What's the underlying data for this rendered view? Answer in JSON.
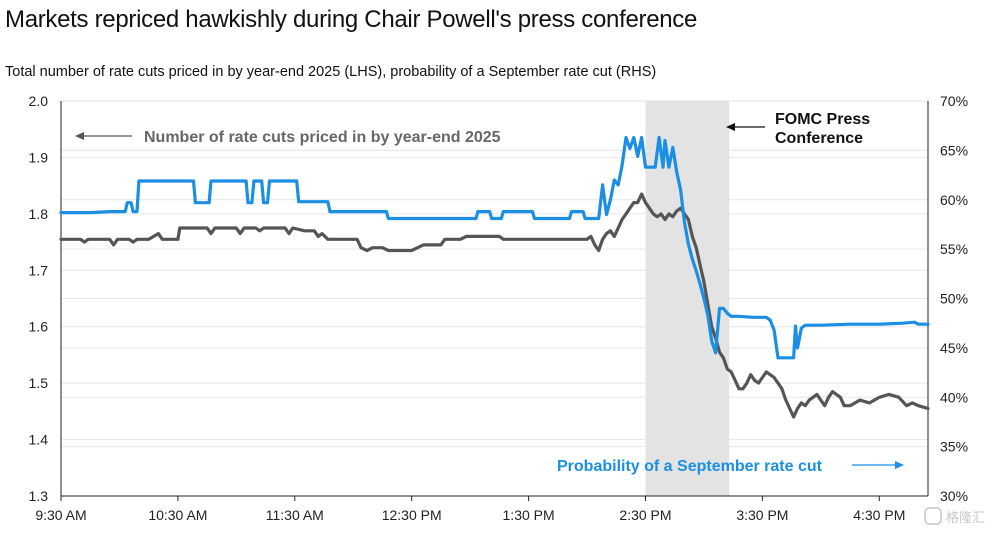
{
  "title": "Markets repriced hawkishly during Chair Powell's press conference",
  "subtitle": "Total number of rate cuts priced in by year-end 2025 (LHS), probability of a September rate cut (RHS)",
  "watermark": "格隆汇",
  "colors": {
    "cuts_series": "#555555",
    "prob_series": "#1a8fe3",
    "shade": "#e3e3e3",
    "grid": "#e6e6e6",
    "axis": "#222222"
  },
  "chart_data": {
    "type": "line",
    "title": "Markets repriced hawkishly during Chair Powell's press conference",
    "subtitle": "Total number of rate cuts priced in by year-end 2025 (LHS), probability of a September rate cut (RHS)",
    "x_tick_labels": [
      "9:30 AM",
      "10:30 AM",
      "11:30 AM",
      "12:30 PM",
      "1:30 PM",
      "2:30 PM",
      "3:30 PM",
      "4:30 PM"
    ],
    "xlim": [
      "9:30",
      "16:55"
    ],
    "y_left": {
      "lim": [
        1.3,
        2.0
      ],
      "ticks": [
        "1.3",
        "1.4",
        "1.5",
        "1.6",
        "1.7",
        "1.8",
        "1.9",
        "2.0"
      ]
    },
    "y_right": {
      "lim": [
        30,
        70
      ],
      "ticks": [
        "30%",
        "35%",
        "40%",
        "45%",
        "50%",
        "55%",
        "60%",
        "65%",
        "70%"
      ]
    },
    "grid": true,
    "shaded_region": {
      "start": "14:30",
      "end": "15:13",
      "label": "FOMC Press Conference"
    },
    "annotations": [
      {
        "text": "Number of rate cuts priced in by year-end 2025",
        "series": "cuts"
      },
      {
        "text": "Probability of a September rate cut",
        "series": "prob"
      }
    ],
    "series": [
      {
        "key": "cuts",
        "axis": "left",
        "color": "#555555",
        "points": [
          [
            "9:30",
            1.755
          ],
          [
            "9:40",
            1.755
          ],
          [
            "9:42",
            1.75
          ],
          [
            "9:44",
            1.755
          ],
          [
            "9:55",
            1.755
          ],
          [
            "9:57",
            1.745
          ],
          [
            "9:59",
            1.755
          ],
          [
            "10:05",
            1.755
          ],
          [
            "10:07",
            1.75
          ],
          [
            "10:09",
            1.755
          ],
          [
            "10:15",
            1.755
          ],
          [
            "10:20",
            1.765
          ],
          [
            "10:22",
            1.755
          ],
          [
            "10:30",
            1.755
          ],
          [
            "10:31",
            1.775
          ],
          [
            "10:45",
            1.775
          ],
          [
            "10:47",
            1.765
          ],
          [
            "10:49",
            1.775
          ],
          [
            "11:00",
            1.775
          ],
          [
            "11:02",
            1.765
          ],
          [
            "11:04",
            1.775
          ],
          [
            "11:10",
            1.775
          ],
          [
            "11:12",
            1.77
          ],
          [
            "11:14",
            1.775
          ],
          [
            "11:25",
            1.775
          ],
          [
            "11:27",
            1.765
          ],
          [
            "11:29",
            1.775
          ],
          [
            "11:35",
            1.77
          ],
          [
            "11:40",
            1.77
          ],
          [
            "11:42",
            1.76
          ],
          [
            "11:44",
            1.765
          ],
          [
            "11:47",
            1.755
          ],
          [
            "11:55",
            1.755
          ],
          [
            "12:02",
            1.755
          ],
          [
            "12:04",
            1.74
          ],
          [
            "12:07",
            1.735
          ],
          [
            "12:10",
            1.74
          ],
          [
            "12:15",
            1.74
          ],
          [
            "12:18",
            1.735
          ],
          [
            "12:30",
            1.735
          ],
          [
            "12:33",
            1.74
          ],
          [
            "12:36",
            1.745
          ],
          [
            "12:45",
            1.745
          ],
          [
            "12:47",
            1.755
          ],
          [
            "12:55",
            1.755
          ],
          [
            "12:58",
            1.76
          ],
          [
            "13:15",
            1.76
          ],
          [
            "13:17",
            1.755
          ],
          [
            "13:30",
            1.755
          ],
          [
            "13:40",
            1.755
          ],
          [
            "13:45",
            1.755
          ],
          [
            "14:00",
            1.755
          ],
          [
            "14:02",
            1.76
          ],
          [
            "14:04",
            1.745
          ],
          [
            "14:06",
            1.735
          ],
          [
            "14:08",
            1.755
          ],
          [
            "14:10",
            1.765
          ],
          [
            "14:12",
            1.77
          ],
          [
            "14:14",
            1.76
          ],
          [
            "14:16",
            1.775
          ],
          [
            "14:18",
            1.79
          ],
          [
            "14:20",
            1.8
          ],
          [
            "14:22",
            1.81
          ],
          [
            "14:24",
            1.82
          ],
          [
            "14:26",
            1.82
          ],
          [
            "14:28",
            1.835
          ],
          [
            "14:30",
            1.82
          ],
          [
            "14:32",
            1.81
          ],
          [
            "14:34",
            1.8
          ],
          [
            "14:36",
            1.795
          ],
          [
            "14:38",
            1.8
          ],
          [
            "14:40",
            1.79
          ],
          [
            "14:42",
            1.8
          ],
          [
            "14:44",
            1.795
          ],
          [
            "14:46",
            1.805
          ],
          [
            "14:48",
            1.81
          ],
          [
            "14:50",
            1.8
          ],
          [
            "14:52",
            1.79
          ],
          [
            "14:54",
            1.76
          ],
          [
            "14:56",
            1.74
          ],
          [
            "14:58",
            1.71
          ],
          [
            "15:00",
            1.68
          ],
          [
            "15:02",
            1.64
          ],
          [
            "15:04",
            1.6
          ],
          [
            "15:06",
            1.58
          ],
          [
            "15:08",
            1.555
          ],
          [
            "15:10",
            1.545
          ],
          [
            "15:12",
            1.525
          ],
          [
            "15:14",
            1.52
          ],
          [
            "15:16",
            1.505
          ],
          [
            "15:18",
            1.49
          ],
          [
            "15:20",
            1.49
          ],
          [
            "15:22",
            1.5
          ],
          [
            "15:24",
            1.515
          ],
          [
            "15:26",
            1.505
          ],
          [
            "15:28",
            1.5
          ],
          [
            "15:30",
            1.51
          ],
          [
            "15:32",
            1.52
          ],
          [
            "15:34",
            1.515
          ],
          [
            "15:36",
            1.51
          ],
          [
            "15:38",
            1.5
          ],
          [
            "15:40",
            1.49
          ],
          [
            "15:42",
            1.47
          ],
          [
            "15:44",
            1.455
          ],
          [
            "15:46",
            1.44
          ],
          [
            "15:48",
            1.455
          ],
          [
            "15:50",
            1.465
          ],
          [
            "15:52",
            1.46
          ],
          [
            "15:54",
            1.47
          ],
          [
            "15:56",
            1.475
          ],
          [
            "15:58",
            1.48
          ],
          [
            "16:00",
            1.47
          ],
          [
            "16:02",
            1.46
          ],
          [
            "16:04",
            1.475
          ],
          [
            "16:06",
            1.485
          ],
          [
            "16:08",
            1.48
          ],
          [
            "16:10",
            1.475
          ],
          [
            "16:12",
            1.46
          ],
          [
            "16:15",
            1.46
          ],
          [
            "16:20",
            1.47
          ],
          [
            "16:25",
            1.465
          ],
          [
            "16:30",
            1.475
          ],
          [
            "16:35",
            1.48
          ],
          [
            "16:40",
            1.475
          ],
          [
            "16:44",
            1.46
          ],
          [
            "16:47",
            1.465
          ],
          [
            "16:50",
            1.46
          ],
          [
            "16:55",
            1.455
          ]
        ]
      },
      {
        "key": "prob",
        "axis": "right",
        "color": "#1a8fe3",
        "points": [
          [
            "9:30",
            58.7
          ],
          [
            "9:45",
            58.7
          ],
          [
            "9:55",
            58.8
          ],
          [
            "10:03",
            58.8
          ],
          [
            "10:04",
            59.7
          ],
          [
            "10:06",
            59.7
          ],
          [
            "10:07",
            58.8
          ],
          [
            "10:09",
            58.8
          ],
          [
            "10:10",
            61.9
          ],
          [
            "10:38",
            61.9
          ],
          [
            "10:39",
            59.7
          ],
          [
            "10:46",
            59.7
          ],
          [
            "10:47",
            61.9
          ],
          [
            "11:05",
            61.9
          ],
          [
            "11:06",
            59.7
          ],
          [
            "11:08",
            59.7
          ],
          [
            "11:09",
            61.9
          ],
          [
            "11:13",
            61.9
          ],
          [
            "11:14",
            59.7
          ],
          [
            "11:16",
            59.7
          ],
          [
            "11:17",
            61.9
          ],
          [
            "11:31",
            61.9
          ],
          [
            "11:32",
            59.8
          ],
          [
            "11:47",
            59.8
          ],
          [
            "11:48",
            58.8
          ],
          [
            "12:17",
            58.8
          ],
          [
            "12:18",
            58.1
          ],
          [
            "13:03",
            58.1
          ],
          [
            "13:04",
            58.8
          ],
          [
            "13:10",
            58.8
          ],
          [
            "13:11",
            58.1
          ],
          [
            "13:16",
            58.1
          ],
          [
            "13:17",
            58.8
          ],
          [
            "13:32",
            58.8
          ],
          [
            "13:33",
            58.1
          ],
          [
            "13:51",
            58.1
          ],
          [
            "13:52",
            58.8
          ],
          [
            "13:58",
            58.8
          ],
          [
            "13:59",
            58.1
          ],
          [
            "14:06",
            58.1
          ],
          [
            "14:08",
            61.5
          ],
          [
            "14:10",
            58.5
          ],
          [
            "14:12",
            60.0
          ],
          [
            "14:14",
            62.0
          ],
          [
            "14:16",
            61.5
          ],
          [
            "14:18",
            63.5
          ],
          [
            "14:20",
            66.3
          ],
          [
            "14:22",
            65.2
          ],
          [
            "14:24",
            66.3
          ],
          [
            "14:26",
            64.4
          ],
          [
            "14:28",
            66.3
          ],
          [
            "14:30",
            63.3
          ],
          [
            "14:32",
            63.3
          ],
          [
            "14:35",
            63.3
          ],
          [
            "14:37",
            66.3
          ],
          [
            "14:39",
            63.3
          ],
          [
            "14:40",
            66.0
          ],
          [
            "14:42",
            63.3
          ],
          [
            "14:44",
            65.3
          ],
          [
            "14:46",
            62.8
          ],
          [
            "14:48",
            61.0
          ],
          [
            "14:50",
            57.7
          ],
          [
            "14:52",
            55.5
          ],
          [
            "14:54",
            54.0
          ],
          [
            "14:56",
            52.8
          ],
          [
            "14:58",
            51.5
          ],
          [
            "15:00",
            50.0
          ],
          [
            "15:02",
            48.3
          ],
          [
            "15:04",
            45.7
          ],
          [
            "15:06",
            44.5
          ],
          [
            "15:08",
            49.0
          ],
          [
            "15:10",
            49.0
          ],
          [
            "15:12",
            48.5
          ],
          [
            "15:14",
            48.2
          ],
          [
            "15:18",
            48.2
          ],
          [
            "15:25",
            48.1
          ],
          [
            "15:32",
            48.1
          ],
          [
            "15:34",
            47.8
          ],
          [
            "15:36",
            46.8
          ],
          [
            "15:38",
            44.0
          ],
          [
            "15:46",
            44.0
          ],
          [
            "15:47",
            47.2
          ],
          [
            "15:48",
            45.0
          ],
          [
            "15:50",
            47.0
          ],
          [
            "15:52",
            47.3
          ],
          [
            "16:00",
            47.3
          ],
          [
            "16:15",
            47.4
          ],
          [
            "16:30",
            47.4
          ],
          [
            "16:42",
            47.5
          ],
          [
            "16:48",
            47.6
          ],
          [
            "16:50",
            47.4
          ],
          [
            "16:55",
            47.4
          ]
        ]
      }
    ]
  }
}
